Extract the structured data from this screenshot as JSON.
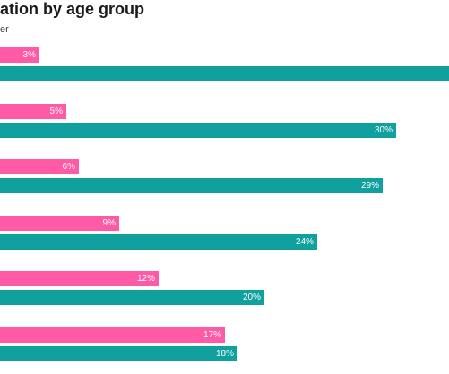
{
  "header": {
    "title": "ation by age group",
    "subtitle": "er"
  },
  "colors": {
    "series_a": "#ff5aa5",
    "series_b": "#10a19f"
  },
  "chart_data": {
    "type": "bar",
    "orientation": "horizontal",
    "title": "ation by age group",
    "categories": [
      "",
      "",
      "",
      "",
      "",
      ""
    ],
    "series": [
      {
        "values": [
          3,
          5,
          6,
          9,
          12,
          17
        ],
        "labels": [
          "3%",
          "5%",
          "6%",
          "9%",
          "12%",
          "17%"
        ]
      },
      {
        "values": [
          34,
          30,
          29,
          24,
          20,
          18
        ],
        "labels": [
          "",
          "30%",
          "29%",
          "24%",
          "20%",
          "18%"
        ]
      }
    ],
    "xlim": [
      0,
      34
    ],
    "grid": false,
    "legend": "none"
  }
}
